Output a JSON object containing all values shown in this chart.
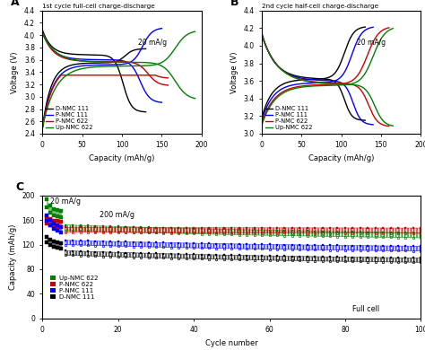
{
  "panel_A_title": "1st cycle full-cell charge-discharge",
  "panel_B_title": "2nd cycle half-cell charge-discharge",
  "annotation_20": "20 mA/g",
  "panel_C_annotation1": "20 mA/g",
  "panel_C_annotation2": "200 mA/g",
  "panel_C_text": "Full cell",
  "colors": {
    "D": "#000000",
    "P111": "#0000ff",
    "P622": "#cc0000",
    "Up": "#008000"
  },
  "panelA_ylim": [
    2.4,
    4.4
  ],
  "panelB_ylim": [
    3.0,
    4.4
  ],
  "panelC_ylim": [
    0,
    200
  ],
  "panelC_yticks": [
    0,
    40,
    80,
    120,
    160,
    200
  ],
  "xlim_AB": [
    0,
    200
  ],
  "xlim_C": [
    0,
    100
  ],
  "xlabel_AB": "Capacity (mAh/g)",
  "xlabel_C": "Cycle number",
  "ylabel_AB": "Voltage (V)",
  "ylabel_C": "Capacity (mAh/g)"
}
